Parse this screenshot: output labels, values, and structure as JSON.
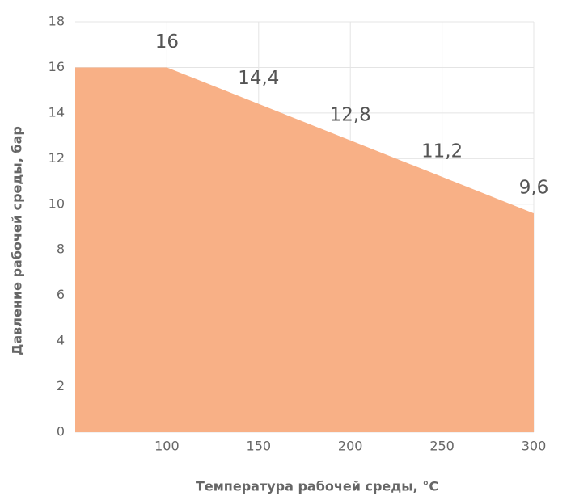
{
  "chart_data": {
    "type": "area",
    "x": [
      50,
      100,
      150,
      200,
      250,
      300
    ],
    "values": [
      16,
      16,
      14.4,
      12.8,
      11.2,
      9.6
    ],
    "value_labels": [
      null,
      "16",
      "14,4",
      "12,8",
      "11,2",
      "9,6"
    ],
    "color": "#f8b086",
    "xlabel": "Температура рабочей среды, °C",
    "ylabel": "Давление рабочей среды, бар",
    "xlim": [
      50,
      300
    ],
    "xticks": [
      100,
      150,
      200,
      250,
      300
    ],
    "ylim": [
      0,
      18
    ],
    "yticks": [
      0,
      2,
      4,
      6,
      8,
      10,
      12,
      14,
      16,
      18
    ],
    "grid": true
  }
}
